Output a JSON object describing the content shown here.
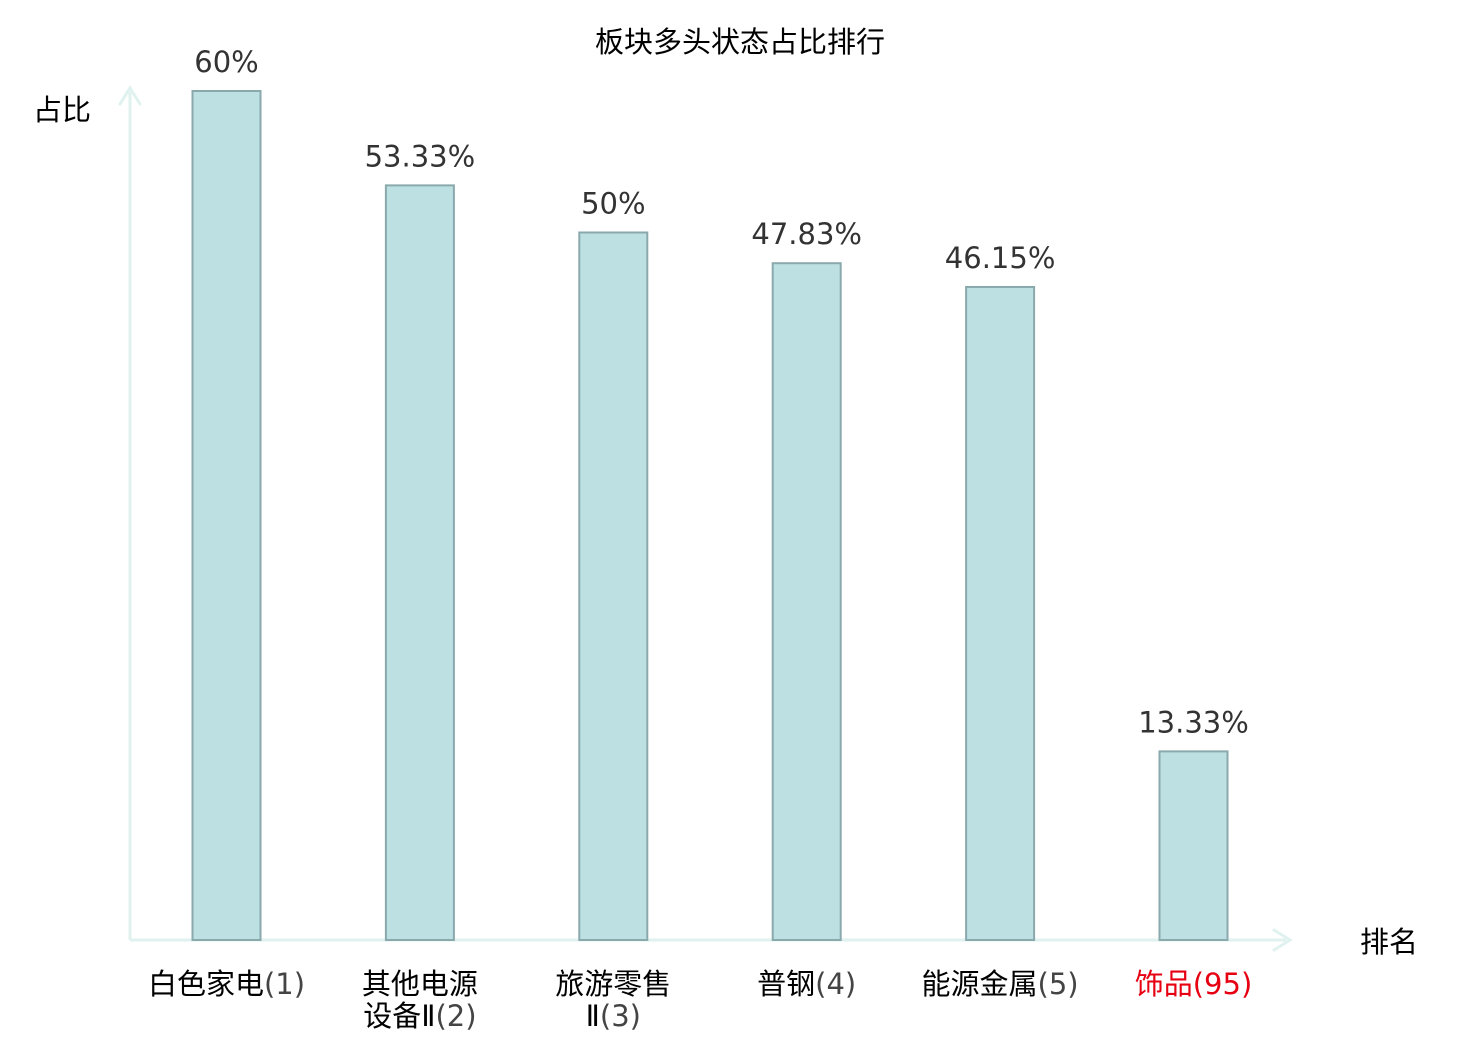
{
  "chart_data": {
    "type": "bar",
    "title": "板块多头状态占比排行",
    "ylabel": "占比",
    "xlabel": "排名",
    "ylim": [
      0,
      60
    ],
    "grid": false,
    "legend": "none",
    "categories": [
      {
        "name": "白色家电",
        "name_lines": [
          "白色家电"
        ],
        "rank": "(1)",
        "highlight": false
      },
      {
        "name": "其他电源设备Ⅱ",
        "name_lines": [
          "其他电源",
          "设备Ⅱ"
        ],
        "rank": "(2)",
        "highlight": false
      },
      {
        "name": "旅游零售Ⅱ",
        "name_lines": [
          "旅游零售",
          "Ⅱ"
        ],
        "rank": "(3)",
        "highlight": false
      },
      {
        "name": "普钢",
        "name_lines": [
          "普钢"
        ],
        "rank": "(4)",
        "highlight": false
      },
      {
        "name": "能源金属",
        "name_lines": [
          "能源金属"
        ],
        "rank": "(5)",
        "highlight": false
      },
      {
        "name": "饰品",
        "name_lines": [
          "饰品"
        ],
        "rank": "(95)",
        "highlight": true
      }
    ],
    "values": [
      60,
      53.33,
      50,
      47.83,
      46.15,
      13.33
    ],
    "value_labels": [
      "60%",
      "53.33%",
      "50%",
      "47.83%",
      "46.15%",
      "13.33%"
    ]
  },
  "colors": {
    "bar_fill": "#bde0e3",
    "bar_stroke": "#8aa9ad",
    "axis": "#e0f2ef",
    "highlight": "#e60012",
    "text": "#000000",
    "value_text": "#333333",
    "rank_text": "#444444"
  }
}
